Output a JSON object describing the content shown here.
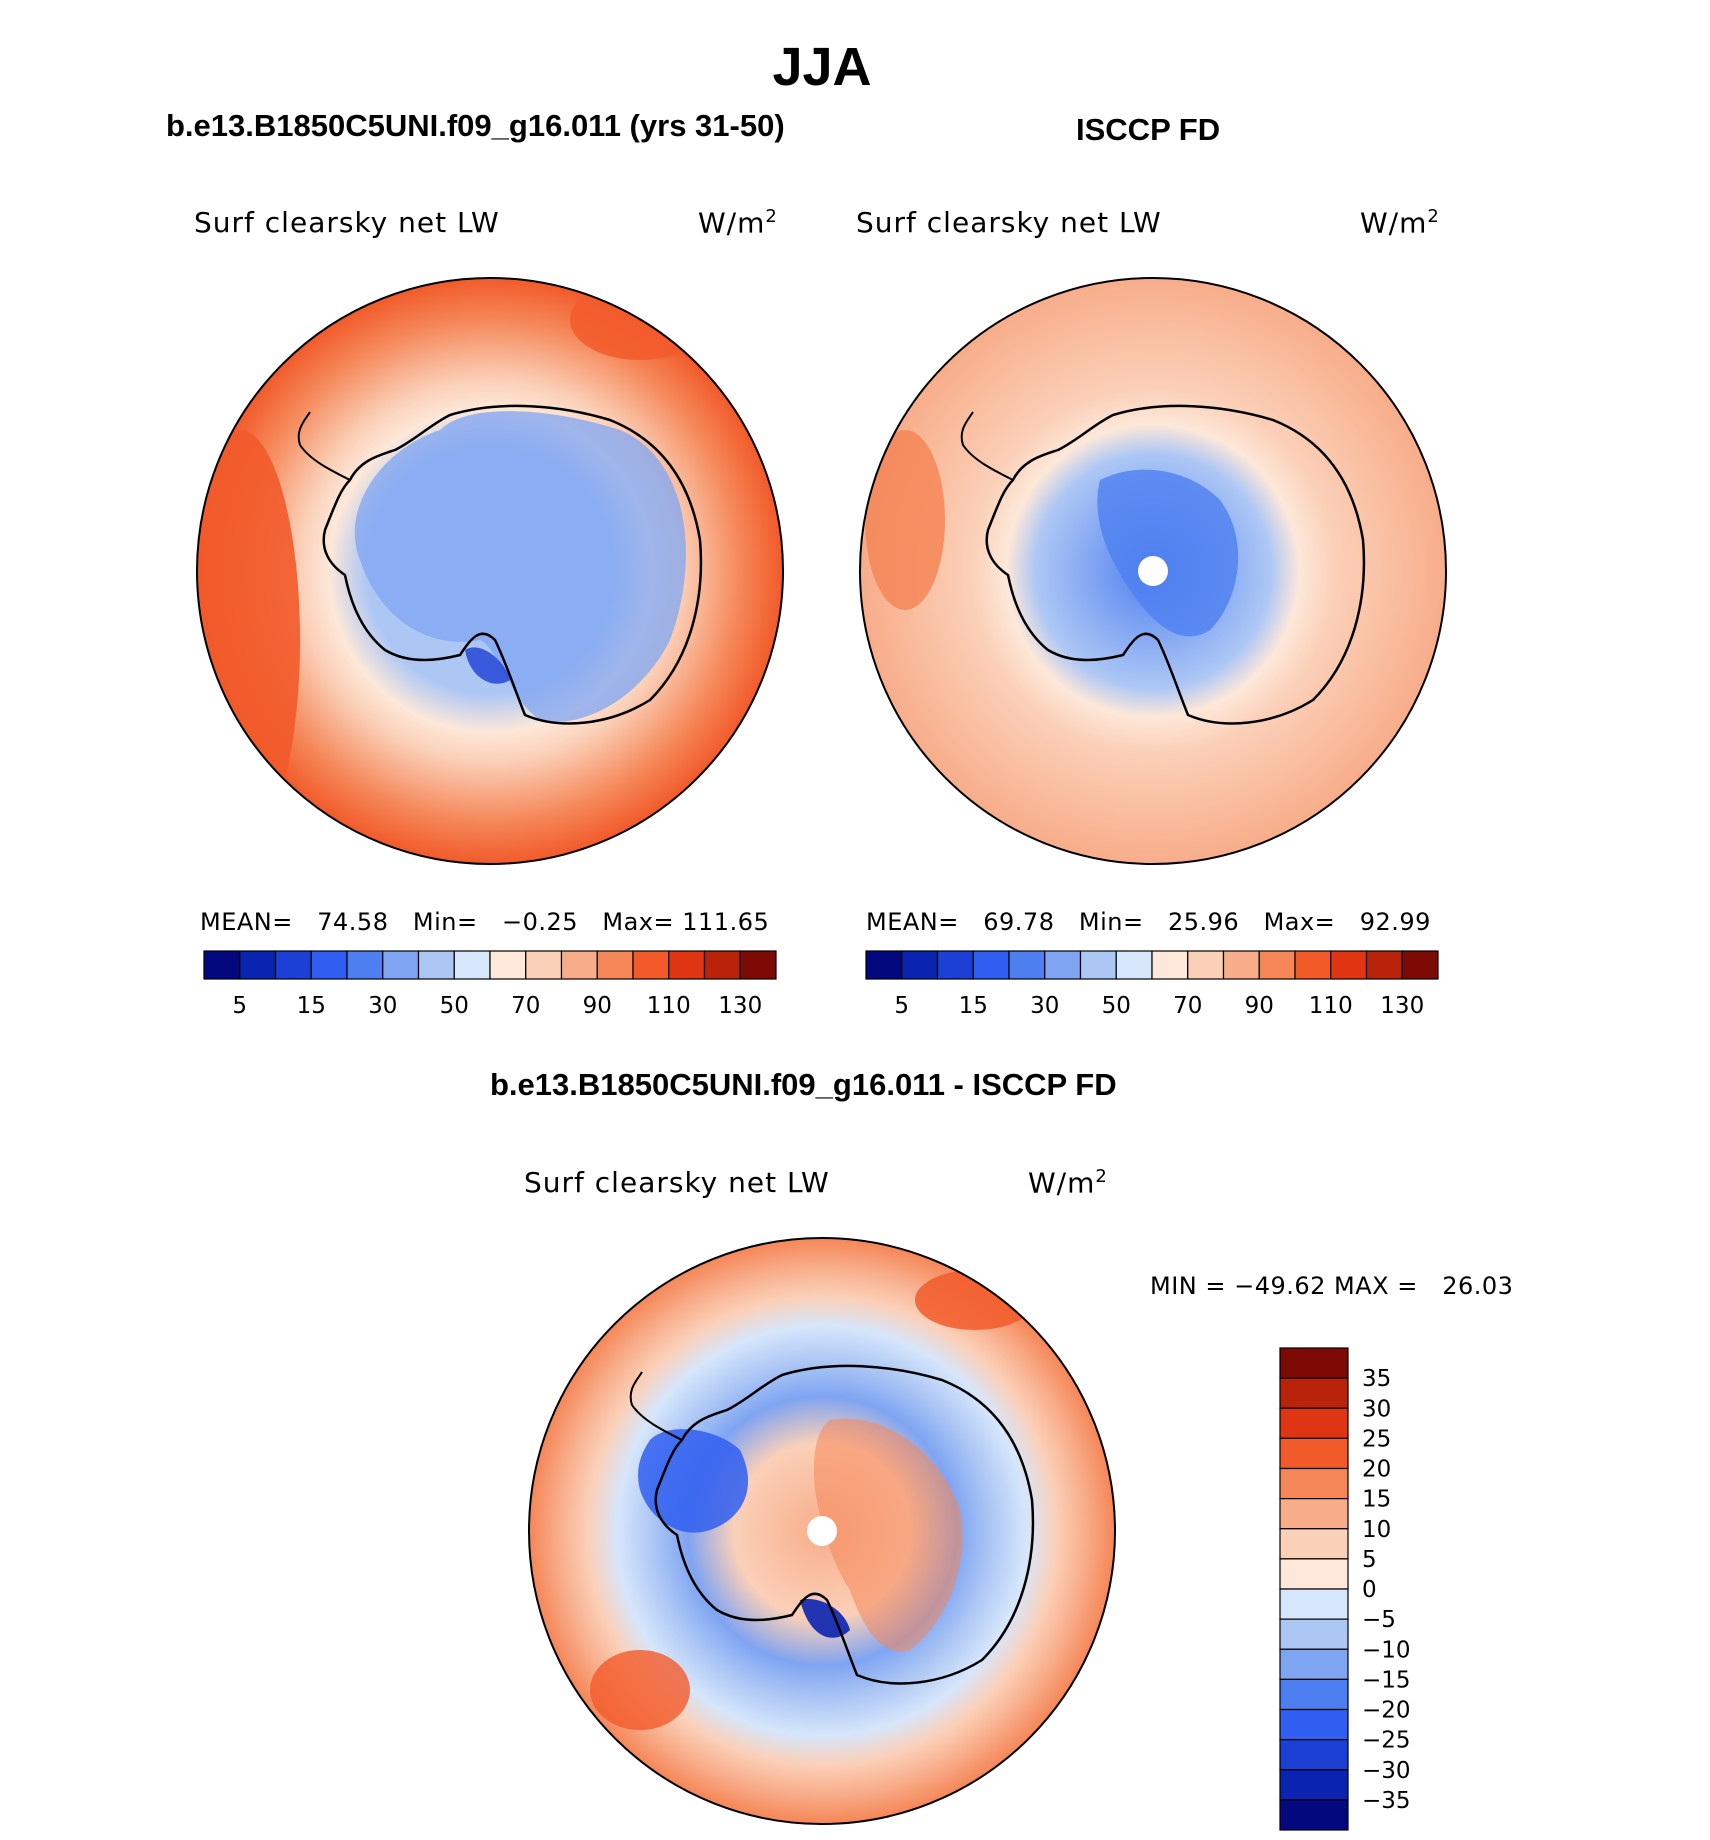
{
  "title": "JJA",
  "panels": [
    {
      "case": "b.e13.B1850C5UNI.f09_g16.011 (yrs 31-50)",
      "variable": "Surf clearsky net LW",
      "units": "W/m",
      "units_sup": "2",
      "stats": {
        "mean_label": "MEAN=",
        "mean": "74.58",
        "min_label": "Min=",
        "min": "−0.25",
        "max_label": "Max=",
        "max": "111.65"
      }
    },
    {
      "case": "ISCCP FD",
      "variable": "Surf clearsky net LW",
      "units": "W/m",
      "units_sup": "2",
      "stats": {
        "mean_label": "MEAN=",
        "mean": "69.78",
        "min_label": "Min=",
        "min": "25.96",
        "max_label": "Max=",
        "max": "92.99"
      }
    }
  ],
  "diff": {
    "case": "b.e13.B1850C5UNI.f09_g16.011 - ISCCP FD",
    "variable": "Surf clearsky net LW",
    "units": "W/m",
    "units_sup": "2",
    "minmax": "MIN = −49.62 MAX =   26.03"
  },
  "chart_data": [
    {
      "type": "heatmap",
      "projection": "south polar stereographic",
      "region": "Antarctica / Southern Ocean",
      "title": "b.e13.B1850C5UNI.f09_g16.011 (yrs 31-50)",
      "variable": "Surf clearsky net LW",
      "units": "W/m2",
      "mean": 74.58,
      "min": -0.25,
      "max": 111.65,
      "colorbar_levels": [
        5,
        10,
        15,
        20,
        30,
        40,
        50,
        60,
        70,
        80,
        90,
        100,
        110,
        120,
        130
      ],
      "colorbar_tick_labels": [
        "5",
        "15",
        "30",
        "50",
        "70",
        "90",
        "110",
        "130"
      ],
      "colorbar_colors": [
        "#04087e",
        "#0a23b0",
        "#1c3fd6",
        "#2f5ef0",
        "#4d7ff0",
        "#7fa4f2",
        "#adc7f5",
        "#d6e6fb",
        "#fde8d9",
        "#fbd0b8",
        "#f8ad8a",
        "#f58657",
        "#f25a2a",
        "#e03512",
        "#b82309",
        "#7d0a05"
      ]
    },
    {
      "type": "heatmap",
      "projection": "south polar stereographic",
      "region": "Antarctica / Southern Ocean",
      "title": "ISCCP FD",
      "variable": "Surf clearsky net LW",
      "units": "W/m2",
      "mean": 69.78,
      "min": 25.96,
      "max": 92.99,
      "colorbar_levels": [
        5,
        10,
        15,
        20,
        30,
        40,
        50,
        60,
        70,
        80,
        90,
        100,
        110,
        120,
        130
      ],
      "colorbar_tick_labels": [
        "5",
        "15",
        "30",
        "50",
        "70",
        "90",
        "110",
        "130"
      ],
      "colorbar_colors": [
        "#04087e",
        "#0a23b0",
        "#1c3fd6",
        "#2f5ef0",
        "#4d7ff0",
        "#7fa4f2",
        "#adc7f5",
        "#d6e6fb",
        "#fde8d9",
        "#fbd0b8",
        "#f8ad8a",
        "#f58657",
        "#f25a2a",
        "#e03512",
        "#b82309",
        "#7d0a05"
      ]
    },
    {
      "type": "heatmap",
      "projection": "south polar stereographic",
      "region": "Antarctica / Southern Ocean",
      "title": "b.e13.B1850C5UNI.f09_g16.011 - ISCCP FD",
      "variable": "Surf clearsky net LW",
      "units": "W/m2",
      "min": -49.62,
      "max": 26.03,
      "colorbar_levels": [
        35,
        30,
        25,
        20,
        15,
        10,
        5,
        0,
        -5,
        -10,
        -15,
        -20,
        -25,
        -30,
        -35
      ],
      "colorbar_tick_labels": [
        "35",
        "30",
        "25",
        "20",
        "15",
        "10",
        "5",
        "0",
        "−5",
        "−10",
        "−15",
        "−20",
        "−25",
        "−30",
        "−35"
      ],
      "colorbar_colors": [
        "#7d0a05",
        "#b82309",
        "#e03512",
        "#f25a2a",
        "#f58657",
        "#f8ad8a",
        "#fbd0b8",
        "#fde8d9",
        "#d6e6fb",
        "#adc7f5",
        "#7fa4f2",
        "#4d7ff0",
        "#2f5ef0",
        "#1c3fd6",
        "#0a23b0",
        "#04087e"
      ]
    }
  ]
}
